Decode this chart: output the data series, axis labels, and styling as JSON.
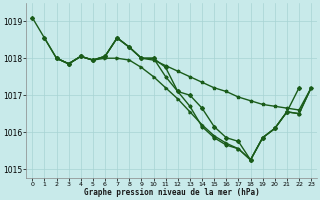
{
  "background_color": "#c8eaea",
  "grid_color": "#a8d4d4",
  "line_color": "#1a5c1a",
  "xlabel": "Graphe pression niveau de la mer (hPa)",
  "xlim": [
    -0.5,
    23.5
  ],
  "ylim": [
    1014.75,
    1019.5
  ],
  "yticks": [
    1015,
    1016,
    1017,
    1018,
    1019
  ],
  "xticks": [
    0,
    1,
    2,
    3,
    4,
    5,
    6,
    7,
    8,
    9,
    10,
    11,
    12,
    13,
    14,
    15,
    16,
    17,
    18,
    19,
    20,
    21,
    22,
    23
  ],
  "series": [
    {
      "x": [
        0,
        1,
        2,
        3,
        4,
        5,
        6,
        7,
        8,
        9,
        10,
        11,
        12,
        13,
        14,
        15,
        16,
        17,
        18,
        19,
        20,
        21,
        22
      ],
      "y": [
        1019.1,
        1018.55,
        1018.0,
        1017.85,
        1018.05,
        1017.95,
        1018.05,
        1018.55,
        1018.3,
        1018.0,
        1018.0,
        1017.75,
        1017.1,
        1017.0,
        1016.65,
        1016.15,
        1015.85,
        1015.75,
        1015.25,
        1015.85,
        1016.1,
        1016.55,
        1017.2
      ],
      "marker": "D",
      "ms": 2.0,
      "lw": 1.0
    },
    {
      "x": [
        1,
        2,
        3,
        4,
        5,
        6,
        7,
        8,
        9,
        10,
        11,
        12,
        13,
        14,
        15,
        16,
        17,
        18,
        19,
        20,
        21,
        22,
        23
      ],
      "y": [
        1018.55,
        1018.0,
        1017.85,
        1018.05,
        1017.95,
        1018.05,
        1018.55,
        1018.3,
        1018.0,
        1017.95,
        1017.8,
        1017.65,
        1017.5,
        1017.35,
        1017.2,
        1017.1,
        1016.95,
        1016.85,
        1016.75,
        1016.7,
        1016.65,
        1016.6,
        1017.2
      ],
      "marker": "*",
      "ms": 2.5,
      "lw": 1.0
    },
    {
      "x": [
        2,
        3,
        4,
        5,
        6,
        7,
        8,
        9,
        10,
        11,
        12,
        13,
        14,
        15,
        16,
        17,
        18,
        19,
        20,
        21,
        22,
        23
      ],
      "y": [
        1018.0,
        1017.85,
        1018.05,
        1017.95,
        1018.05,
        1018.55,
        1018.3,
        1018.0,
        1018.0,
        1017.5,
        1017.1,
        1016.7,
        1016.15,
        1015.85,
        1015.65,
        1015.55,
        1015.25,
        1015.85,
        1016.1,
        1016.55,
        1016.5,
        1017.2
      ],
      "marker": "P",
      "ms": 2.0,
      "lw": 1.0
    },
    {
      "x": [
        2,
        3,
        4,
        5,
        6,
        7,
        8,
        9,
        10,
        11,
        12,
        13,
        14,
        15,
        16,
        17,
        18,
        19,
        20,
        21,
        22,
        23
      ],
      "y": [
        1018.0,
        1017.85,
        1018.05,
        1017.95,
        1018.0,
        1018.0,
        1017.95,
        1017.75,
        1017.5,
        1017.2,
        1016.9,
        1016.55,
        1016.2,
        1015.9,
        1015.7,
        1015.55,
        1015.25,
        1015.85,
        1016.1,
        1016.55,
        1016.5,
        1017.2
      ],
      "marker": ">",
      "ms": 2.0,
      "lw": 1.0
    }
  ]
}
